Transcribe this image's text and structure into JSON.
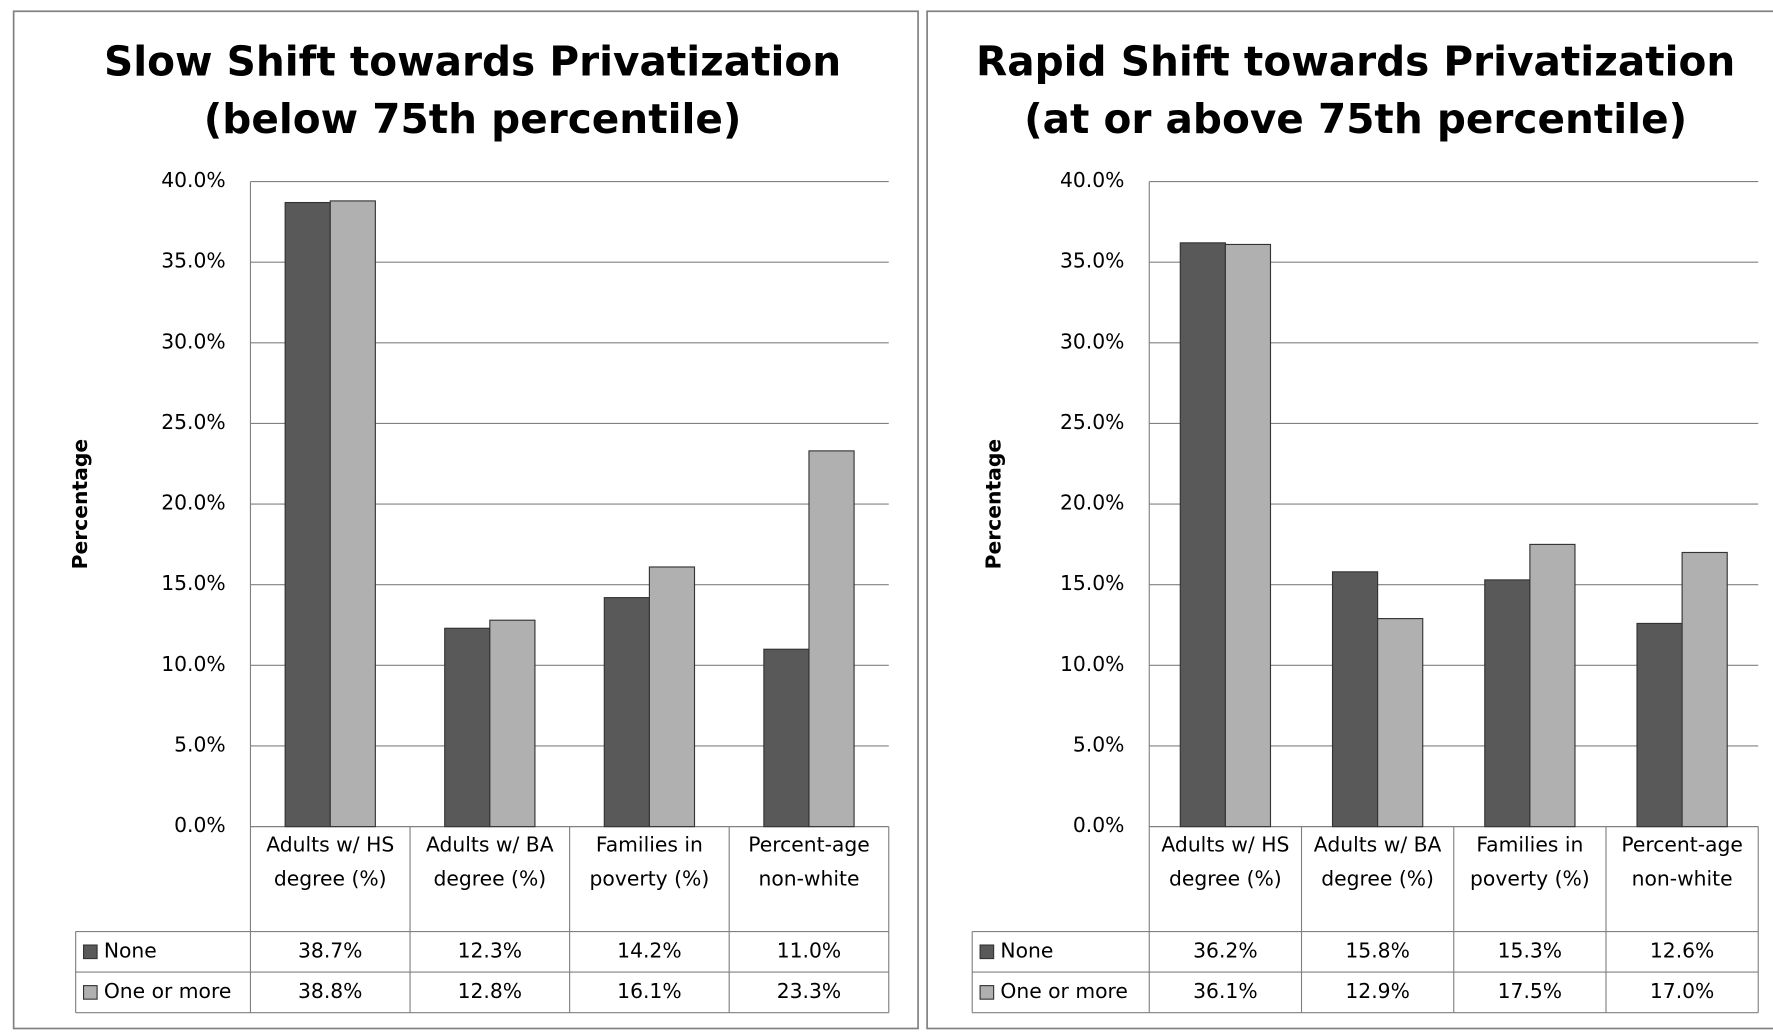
{
  "chart_data": [
    {
      "type": "bar",
      "title": "Slow Shift towards Privatization",
      "subtitle": "(below 75th percentile)",
      "y_label": "Percentage",
      "categories": [
        "Adults w/ HS degree (%)",
        "Adults w/ BA degree (%)",
        "Families in poverty (%)",
        "Percent-age non-white"
      ],
      "series": [
        {
          "name": "None",
          "color": "#595959",
          "values": [
            38.7,
            12.3,
            14.2,
            11.0
          ],
          "value_labels": [
            "38.7%",
            "12.3%",
            "14.2%",
            "11.0%"
          ]
        },
        {
          "name": "One or more",
          "color": "#b0b0b0",
          "values": [
            38.8,
            12.8,
            16.1,
            23.3
          ],
          "value_labels": [
            "38.8%",
            "12.8%",
            "16.1%",
            "23.3%"
          ]
        }
      ],
      "ylim": [
        0,
        40
      ],
      "yticks": [
        {
          "value": 0,
          "label": "0.0%"
        },
        {
          "value": 5,
          "label": "5.0%"
        },
        {
          "value": 10,
          "label": "10.0%"
        },
        {
          "value": 15,
          "label": "15.0%"
        },
        {
          "value": 20,
          "label": "20.0%"
        },
        {
          "value": 25,
          "label": "25.0%"
        },
        {
          "value": 30,
          "label": "30.0%"
        },
        {
          "value": 35,
          "label": "35.0%"
        },
        {
          "value": 40,
          "label": "40.0%"
        }
      ],
      "grid": true
    },
    {
      "type": "bar",
      "title": "Rapid Shift towards Privatization",
      "subtitle": "(at or above 75th percentile)",
      "y_label": "Percentage",
      "categories": [
        "Adults w/ HS degree (%)",
        "Adults w/ BA degree (%)",
        "Families in poverty (%)",
        "Percent-age non-white"
      ],
      "series": [
        {
          "name": "None",
          "color": "#595959",
          "values": [
            36.2,
            15.8,
            15.3,
            12.6
          ],
          "value_labels": [
            "36.2%",
            "15.8%",
            "15.3%",
            "12.6%"
          ]
        },
        {
          "name": "One or more",
          "color": "#b0b0b0",
          "values": [
            36.1,
            12.9,
            17.5,
            17.0
          ],
          "value_labels": [
            "36.1%",
            "12.9%",
            "17.5%",
            "17.0%"
          ]
        }
      ],
      "ylim": [
        0,
        40
      ],
      "yticks": [
        {
          "value": 0,
          "label": "0.0%"
        },
        {
          "value": 5,
          "label": "5.0%"
        },
        {
          "value": 10,
          "label": "10.0%"
        },
        {
          "value": 15,
          "label": "15.0%"
        },
        {
          "value": 20,
          "label": "20.0%"
        },
        {
          "value": 25,
          "label": "25.0%"
        },
        {
          "value": 30,
          "label": "30.0%"
        },
        {
          "value": 35,
          "label": "35.0%"
        },
        {
          "value": 40,
          "label": "40.0%"
        }
      ],
      "grid": true
    }
  ]
}
